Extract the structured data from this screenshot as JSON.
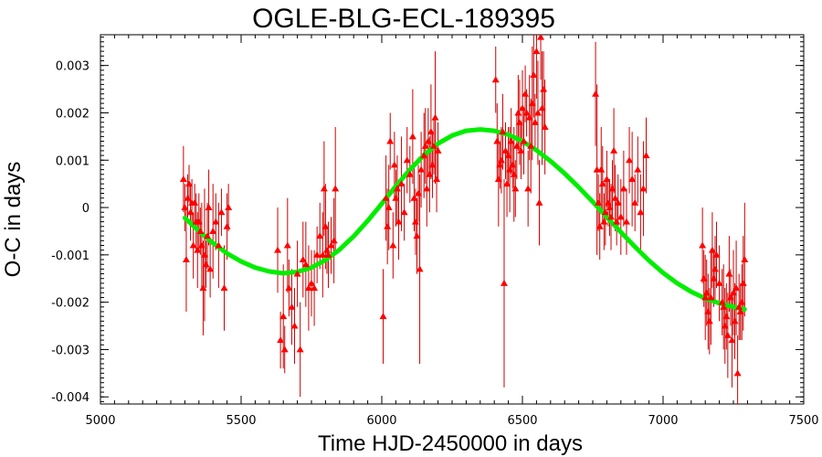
{
  "chart_data": {
    "type": "scatter",
    "title": "OGLE-BLG-ECL-189395",
    "xlabel": "Time HJD-2450000 in days",
    "ylabel": "O-C in days",
    "xlim": [
      5000,
      7500
    ],
    "ylim": [
      -0.00415,
      0.00365
    ],
    "x_ticks": [
      5000,
      5500,
      6000,
      6500,
      7000,
      7500
    ],
    "x_tick_labels": [
      "5000",
      "5500",
      "6000",
      "6500",
      "7000",
      "7500"
    ],
    "y_ticks": [
      0.003,
      0.002,
      0.001,
      0,
      -0.001,
      -0.002,
      -0.003,
      -0.004
    ],
    "y_tick_labels": [
      "0.003",
      "0.002",
      "0.001",
      "0",
      "-0.001",
      "-0.002",
      "-0.003",
      "-0.004"
    ],
    "grid": false,
    "colors": {
      "points": "#ff0000",
      "errorbars": "#cc0000",
      "fit": "#00ee00",
      "frame": "#000000"
    },
    "series": [
      {
        "kind": "points_with_errorbars",
        "points": [
          [
            5295,
            0.0006,
            0.0007
          ],
          [
            5300,
            0.0,
            0.0005
          ],
          [
            5305,
            -0.0011,
            0.0011
          ],
          [
            5310,
            0.0002,
            0.0005
          ],
          [
            5315,
            0.0005,
            0.0004
          ],
          [
            5320,
            -0.0001,
            0.0006
          ],
          [
            5325,
            0.0001,
            0.0005
          ],
          [
            5330,
            -0.0008,
            0.0007
          ],
          [
            5335,
            0.0001,
            0.0004
          ],
          [
            5340,
            -0.0003,
            0.0006
          ],
          [
            5345,
            -0.0009,
            0.0008
          ],
          [
            5350,
            -0.0003,
            0.0006
          ],
          [
            5355,
            -0.0005,
            0.0005
          ],
          [
            5360,
            -0.0008,
            0.0009
          ],
          [
            5365,
            -0.0017,
            0.001
          ],
          [
            5370,
            -0.001,
            0.0014
          ],
          [
            5375,
            -0.0012,
            0.0005
          ],
          [
            5380,
            -0.0006,
            0.0007
          ],
          [
            5385,
            0.0,
            0.0008
          ],
          [
            5390,
            -0.0013,
            0.0006
          ],
          [
            5400,
            -0.0005,
            0.001
          ],
          [
            5410,
            -0.0003,
            0.0006
          ],
          [
            5420,
            -0.0008,
            0.0009
          ],
          [
            5430,
            -0.0001,
            0.0005
          ],
          [
            5440,
            -0.0017,
            0.0009
          ],
          [
            5450,
            -0.0004,
            0.0007
          ],
          [
            5455,
            0.0,
            0.0005
          ],
          [
            5630,
            -0.0009,
            0.0009
          ],
          [
            5640,
            -0.0028,
            0.0006
          ],
          [
            5650,
            -0.0023,
            0.0011
          ],
          [
            5655,
            -0.003,
            0.0005
          ],
          [
            5665,
            -0.0008,
            0.001
          ],
          [
            5670,
            -0.0017,
            0.0006
          ],
          [
            5680,
            -0.0021,
            0.0008
          ],
          [
            5690,
            -0.0025,
            0.0008
          ],
          [
            5700,
            -0.0014,
            0.0007
          ],
          [
            5710,
            -0.003,
            0.001
          ],
          [
            5720,
            -0.0011,
            0.0008
          ],
          [
            5730,
            -0.0012,
            0.0009
          ],
          [
            5740,
            -0.0017,
            0.0009
          ],
          [
            5750,
            -0.0016,
            0.0007
          ],
          [
            5760,
            -0.0017,
            0.0008
          ],
          [
            5770,
            -0.001,
            0.0006
          ],
          [
            5780,
            -0.0006,
            0.0007
          ],
          [
            5790,
            -0.001,
            0.0009
          ],
          [
            5795,
            0.0004,
            0.001
          ],
          [
            5800,
            -0.0004,
            0.0009
          ],
          [
            5805,
            -0.0009,
            0.0005
          ],
          [
            5810,
            -0.001,
            0.0007
          ],
          [
            5820,
            -0.0008,
            0.0006
          ],
          [
            5830,
            -0.0007,
            0.0009
          ],
          [
            5835,
            0.0004,
            0.0013
          ],
          [
            6005,
            -0.0023,
            0.001
          ],
          [
            6015,
            0.0002,
            0.0009
          ],
          [
            6020,
            -0.0004,
            0.0008
          ],
          [
            6025,
            0.0,
            0.0009
          ],
          [
            6030,
            0.0014,
            0.0006
          ],
          [
            6040,
            -0.0008,
            0.0007
          ],
          [
            6045,
            0.0009,
            0.0007
          ],
          [
            6050,
            0.0002,
            0.0006
          ],
          [
            6055,
            0.0004,
            0.0007
          ],
          [
            6060,
            -0.0003,
            0.0008
          ],
          [
            6070,
            0.0005,
            0.001
          ],
          [
            6080,
            -0.0001,
            0.0006
          ],
          [
            6090,
            0.001,
            0.0007
          ],
          [
            6100,
            0.0007,
            0.0006
          ],
          [
            6110,
            0.0015,
            0.001
          ],
          [
            6115,
            0.0002,
            0.0007
          ],
          [
            6120,
            -0.0003,
            0.0007
          ],
          [
            6125,
            -0.0006,
            0.0008
          ],
          [
            6130,
            0.0003,
            0.0006
          ],
          [
            6135,
            -0.0013,
            0.002
          ],
          [
            6140,
            0.0008,
            0.0008
          ],
          [
            6150,
            0.0011,
            0.0009
          ],
          [
            6155,
            0.0013,
            0.0008
          ],
          [
            6160,
            0.0004,
            0.0008
          ],
          [
            6165,
            0.0014,
            0.0007
          ],
          [
            6170,
            0.0007,
            0.0008
          ],
          [
            6175,
            0.0016,
            0.001
          ],
          [
            6180,
            0.0009,
            0.0007
          ],
          [
            6185,
            0.0013,
            0.0006
          ],
          [
            6190,
            0.0019,
            0.0014
          ],
          [
            6195,
            0.0006,
            0.0007
          ],
          [
            6200,
            0.0012,
            0.0006
          ],
          [
            6405,
            0.0027,
            0.0007
          ],
          [
            6410,
            0.0014,
            0.0008
          ],
          [
            6415,
            0.0006,
            0.001
          ],
          [
            6420,
            0.0009,
            0.0005
          ],
          [
            6425,
            0.001,
            0.0007
          ],
          [
            6430,
            0.0016,
            0.0008
          ],
          [
            6435,
            -0.0016,
            0.0022
          ],
          [
            6440,
            0.0012,
            0.0006
          ],
          [
            6445,
            0.0005,
            0.0007
          ],
          [
            6450,
            0.0011,
            0.0006
          ],
          [
            6455,
            0.0008,
            0.0009
          ],
          [
            6460,
            0.0014,
            0.0007
          ],
          [
            6465,
            0.0009,
            0.0005
          ],
          [
            6470,
            0.0007,
            0.001
          ],
          [
            6475,
            0.0004,
            0.0006
          ],
          [
            6480,
            0.0013,
            0.0007
          ],
          [
            6485,
            0.002,
            0.0008
          ],
          [
            6490,
            0.0018,
            0.0009
          ],
          [
            6495,
            0.0012,
            0.0006
          ],
          [
            6500,
            0.0021,
            0.0008
          ],
          [
            6505,
            0.0014,
            0.0007
          ],
          [
            6510,
            0.0024,
            0.0006
          ],
          [
            6515,
            0.002,
            0.0005
          ],
          [
            6520,
            0.0004,
            0.0008
          ],
          [
            6525,
            0.0019,
            0.0009
          ],
          [
            6530,
            0.0013,
            0.001
          ],
          [
            6535,
            0.0022,
            0.0012
          ],
          [
            6540,
            0.0028,
            0.0009
          ],
          [
            6545,
            0.0018,
            0.0006
          ],
          [
            6550,
            0.0033,
            0.001
          ],
          [
            6555,
            0.002,
            0.0011
          ],
          [
            6560,
            0.0001,
            0.0009
          ],
          [
            6565,
            0.0036,
            0.0009
          ],
          [
            6570,
            0.0021,
            0.0012
          ],
          [
            6575,
            0.0025,
            0.0008
          ],
          [
            6580,
            0.0017,
            0.001
          ],
          [
            6760,
            0.0024,
            0.0011
          ],
          [
            6765,
            0.0008,
            0.0018
          ],
          [
            6770,
            0.0001,
            0.0006
          ],
          [
            6775,
            -0.0004,
            0.0007
          ],
          [
            6780,
            0.0008,
            0.0009
          ],
          [
            6785,
            0.0005,
            0.0008
          ],
          [
            6790,
            -0.0003,
            0.0006
          ],
          [
            6795,
            -0.0001,
            0.0007
          ],
          [
            6800,
            0.0006,
            0.0006
          ],
          [
            6805,
            0.0001,
            0.0005
          ],
          [
            6810,
            0.0,
            0.0006
          ],
          [
            6815,
            -0.0002,
            0.0007
          ],
          [
            6820,
            0.0004,
            0.0006
          ],
          [
            6825,
            0.0012,
            0.0009
          ],
          [
            6830,
            0.0002,
            0.0007
          ],
          [
            6835,
            -0.0003,
            0.0005
          ],
          [
            6840,
            0.0001,
            0.0006
          ],
          [
            6850,
            -0.0002,
            0.0008
          ],
          [
            6860,
            0.0004,
            0.0008
          ],
          [
            6870,
            -0.0003,
            0.0007
          ],
          [
            6880,
            0.001,
            0.0007
          ],
          [
            6890,
            0.0006,
            0.001
          ],
          [
            6900,
            0.0001,
            0.0006
          ],
          [
            6910,
            0.0008,
            0.0007
          ],
          [
            6920,
            -0.0001,
            0.0008
          ],
          [
            6930,
            0.0004,
            0.001
          ],
          [
            6940,
            0.0011,
            0.0008
          ],
          [
            7140,
            -0.0008,
            0.0008
          ],
          [
            7145,
            -0.0015,
            0.0006
          ],
          [
            7150,
            -0.0019,
            0.0009
          ],
          [
            7155,
            -0.0018,
            0.0007
          ],
          [
            7160,
            -0.0022,
            0.0008
          ],
          [
            7165,
            -0.0024,
            0.0007
          ],
          [
            7170,
            -0.0019,
            0.001
          ],
          [
            7175,
            -0.0009,
            0.0008
          ],
          [
            7180,
            -0.0015,
            0.0006
          ],
          [
            7185,
            -0.0013,
            0.0007
          ],
          [
            7190,
            -0.001,
            0.0007
          ],
          [
            7200,
            -0.0016,
            0.0008
          ],
          [
            7210,
            -0.002,
            0.0007
          ],
          [
            7215,
            -0.0021,
            0.0009
          ],
          [
            7220,
            -0.0025,
            0.0008
          ],
          [
            7225,
            -0.0023,
            0.0007
          ],
          [
            7230,
            -0.0027,
            0.0009
          ],
          [
            7235,
            -0.0014,
            0.0008
          ],
          [
            7240,
            -0.0019,
            0.0006
          ],
          [
            7245,
            -0.0028,
            0.001
          ],
          [
            7250,
            -0.0018,
            0.0009
          ],
          [
            7255,
            -0.0024,
            0.0008
          ],
          [
            7260,
            -0.0017,
            0.001
          ],
          [
            7265,
            -0.0035,
            0.0008
          ],
          [
            7270,
            -0.0021,
            0.0007
          ],
          [
            7275,
            -0.0022,
            0.0006
          ],
          [
            7280,
            -0.002,
            0.0008
          ],
          [
            7285,
            -0.0016,
            0.001
          ],
          [
            7290,
            -0.0011,
            0.0012
          ]
        ]
      },
      {
        "kind": "fit_curve",
        "x": [
          5300,
          5350,
          5400,
          5450,
          5500,
          5550,
          5600,
          5650,
          5700,
          5750,
          5800,
          5850,
          5900,
          5950,
          6000,
          6050,
          6100,
          6150,
          6200,
          6250,
          6300,
          6350,
          6400,
          6450,
          6500,
          6550,
          6600,
          6650,
          6700,
          6750,
          6800,
          6850,
          6900,
          6950,
          7000,
          7050,
          7100,
          7150,
          7200,
          7250,
          7290
        ],
        "y": [
          -0.00022,
          -0.0005,
          -0.00075,
          -0.00097,
          -0.00114,
          -0.00127,
          -0.00135,
          -0.00139,
          -0.00136,
          -0.00127,
          -0.00111,
          -0.00089,
          -0.00061,
          -0.00028,
          8e-05,
          0.00045,
          0.0008,
          0.00111,
          0.00135,
          0.00152,
          0.00162,
          0.00165,
          0.00162,
          0.00154,
          0.0014,
          0.00121,
          0.00098,
          0.00072,
          0.00043,
          0.00012,
          -0.0002,
          -0.00052,
          -0.00083,
          -0.00112,
          -0.00138,
          -0.0016,
          -0.00178,
          -0.00192,
          -0.00202,
          -0.0021,
          -0.00215
        ]
      }
    ]
  }
}
